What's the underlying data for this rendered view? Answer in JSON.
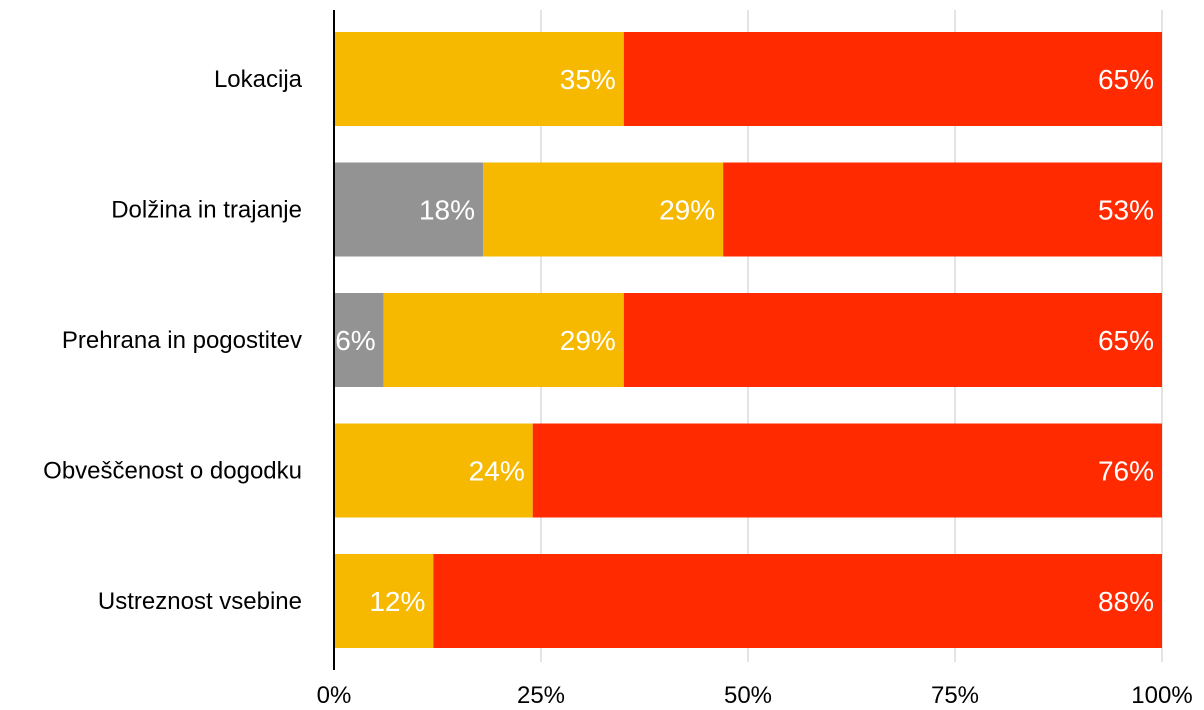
{
  "chart_data": {
    "type": "bar",
    "orientation": "horizontal",
    "stacked": true,
    "categories": [
      "Lokacija",
      "Dolžina in trajanje",
      "Prehrana in pogostitev",
      "Obveščenost o dogodku",
      "Ustreznost vsebine"
    ],
    "series": [
      {
        "color": "#939393",
        "values": [
          0,
          18,
          6,
          0,
          0
        ]
      },
      {
        "color": "#F6B900",
        "values": [
          35,
          29,
          29,
          24,
          12
        ]
      },
      {
        "color": "#FF2A00",
        "values": [
          65,
          53,
          65,
          76,
          88
        ]
      }
    ],
    "segment_labels": [
      [
        "",
        "35%",
        "65%"
      ],
      [
        "18%",
        "29%",
        "53%"
      ],
      [
        "6%",
        "29%",
        "65%"
      ],
      [
        "",
        "24%",
        "76%"
      ],
      [
        "",
        "12%",
        "88%"
      ]
    ],
    "xlim": [
      0,
      100
    ],
    "xticks": [
      0,
      25,
      50,
      75,
      100
    ],
    "xtick_labels": [
      "0%",
      "25%",
      "50%",
      "75%",
      "100%"
    ],
    "grid": true,
    "legend": "none"
  }
}
